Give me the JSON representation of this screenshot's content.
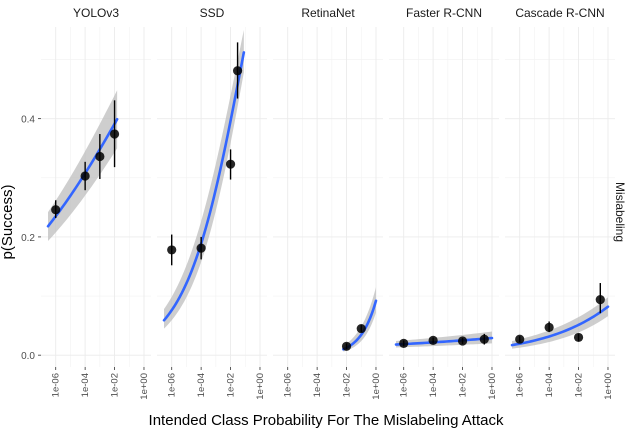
{
  "chart_data": {
    "type": "scatter",
    "xlabel": "Intended Class Probability For The Mislabeling Attack",
    "ylabel": "p(Success)",
    "strip_label": "Mislabeling",
    "x_scale": "log10",
    "xlim": [
      1e-07,
      3
    ],
    "ylim": [
      -0.02,
      0.555
    ],
    "x_ticks": [
      1e-06,
      0.0001,
      0.01,
      1
    ],
    "x_tick_labels": [
      "1e-06",
      "1e-04",
      "1e-02",
      "1e+00"
    ],
    "y_ticks": [
      0.0,
      0.2,
      0.4
    ],
    "y_tick_labels": [
      "0.0",
      "0.2",
      "0.4"
    ],
    "grid": true,
    "colors": {
      "fit_line": "#3366ff",
      "ribbon": "#bdbdbd",
      "point": "#000000",
      "panel_bg": "#ffffff",
      "grid": "#ebebeb"
    },
    "panels": [
      {
        "title": "YOLOv3",
        "points": [
          {
            "x": 1e-06,
            "y": 0.246,
            "lo": 0.232,
            "hi": 0.262
          },
          {
            "x": 0.0001,
            "y": 0.303,
            "lo": 0.279,
            "hi": 0.327
          },
          {
            "x": 0.001,
            "y": 0.336,
            "lo": 0.298,
            "hi": 0.374
          },
          {
            "x": 0.01,
            "y": 0.374,
            "lo": 0.318,
            "hi": 0.431
          }
        ],
        "fit": {
          "x": [
            3e-07,
            0.015
          ],
          "y": [
            0.218,
            0.399
          ]
        },
        "band": {
          "lo": [
            0.193,
            0.35
          ],
          "hi": [
            0.242,
            0.448
          ]
        }
      },
      {
        "title": "SSD",
        "points": [
          {
            "x": 1e-06,
            "y": 0.178,
            "lo": 0.152,
            "hi": 0.204
          },
          {
            "x": 0.0001,
            "y": 0.181,
            "lo": 0.162,
            "hi": 0.2
          },
          {
            "x": 0.01,
            "y": 0.323,
            "lo": 0.297,
            "hi": 0.348
          },
          {
            "x": 0.03,
            "y": 0.481,
            "lo": 0.434,
            "hi": 0.529
          }
        ],
        "fit": {
          "x": [
            3e-07,
            0.08
          ],
          "y": [
            0.059,
            0.512
          ]
        },
        "band": {
          "lo": [
            0.045,
            0.478
          ],
          "hi": [
            0.078,
            0.55
          ]
        }
      },
      {
        "title": "RetinaNet",
        "points": [
          {
            "x": 0.01,
            "y": 0.015,
            "lo": 0.01,
            "hi": 0.02
          },
          {
            "x": 0.1,
            "y": 0.045,
            "lo": 0.039,
            "hi": 0.051
          }
        ],
        "fit": {
          "x": [
            0.006,
            1.0
          ],
          "y": [
            0.01,
            0.092
          ]
        },
        "band": {
          "lo": [
            0.006,
            0.072
          ],
          "hi": [
            0.016,
            0.115
          ]
        }
      },
      {
        "title": "Faster R-CNN",
        "points": [
          {
            "x": 1e-06,
            "y": 0.02,
            "lo": 0.015,
            "hi": 0.025
          },
          {
            "x": 0.0001,
            "y": 0.025,
            "lo": 0.02,
            "hi": 0.03
          },
          {
            "x": 0.01,
            "y": 0.024,
            "lo": 0.019,
            "hi": 0.029
          },
          {
            "x": 0.3,
            "y": 0.027,
            "lo": 0.018,
            "hi": 0.036
          }
        ],
        "fit": {
          "x": [
            3e-07,
            1.0
          ],
          "y": [
            0.018,
            0.029
          ]
        },
        "band": {
          "lo": [
            0.013,
            0.02
          ],
          "hi": [
            0.024,
            0.04
          ]
        }
      },
      {
        "title": "Cascade R-CNN",
        "points": [
          {
            "x": 1e-06,
            "y": 0.027,
            "lo": 0.022,
            "hi": 0.032
          },
          {
            "x": 0.0001,
            "y": 0.047,
            "lo": 0.039,
            "hi": 0.057
          },
          {
            "x": 0.01,
            "y": 0.03,
            "lo": 0.024,
            "hi": 0.036
          },
          {
            "x": 0.3,
            "y": 0.094,
            "lo": 0.071,
            "hi": 0.122
          }
        ],
        "fit": {
          "x": [
            3e-07,
            1.0
          ],
          "y": [
            0.017,
            0.082
          ]
        },
        "band": {
          "lo": [
            0.011,
            0.066
          ],
          "hi": [
            0.024,
            0.098
          ]
        }
      }
    ]
  }
}
